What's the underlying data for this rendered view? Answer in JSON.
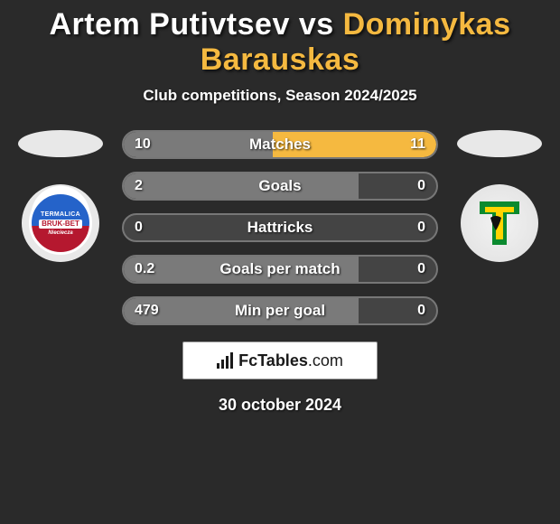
{
  "title": {
    "player1": "Artem Putivtsev",
    "vs": "vs",
    "player2": "Dominykas Barauskas",
    "color1": "#ffffff",
    "color2": "#f5b940"
  },
  "subtitle": "Club competitions, Season 2024/2025",
  "colors": {
    "left_fill": "#7a7a7a",
    "right_fill": "#f5b940",
    "row_bg": "#444444",
    "row_border": "#777777",
    "background": "#2a2a2a"
  },
  "stats": [
    {
      "label": "Matches",
      "left_val": "10",
      "right_val": "11",
      "left_pct": 47.6,
      "right_pct": 52.4
    },
    {
      "label": "Goals",
      "left_val": "2",
      "right_val": "0",
      "left_pct": 75.0,
      "right_pct": 0.0
    },
    {
      "label": "Hattricks",
      "left_val": "0",
      "right_val": "0",
      "left_pct": 0.0,
      "right_pct": 0.0
    },
    {
      "label": "Goals per match",
      "left_val": "0.2",
      "right_val": "0",
      "left_pct": 75.0,
      "right_pct": 0.0
    },
    {
      "label": "Min per goal",
      "left_val": "479",
      "right_val": "0",
      "left_pct": 75.0,
      "right_pct": 0.0
    }
  ],
  "club_left": {
    "line1": "TERMALICA",
    "line2": "BRUK-BET",
    "line3": "Nieciecza"
  },
  "club_right_colors": {
    "green": "#0b8a2f",
    "yellow": "#ffd400",
    "black": "#111111"
  },
  "brand": {
    "name": "FcTables",
    "domain": ".com"
  },
  "date": "30 october 2024"
}
